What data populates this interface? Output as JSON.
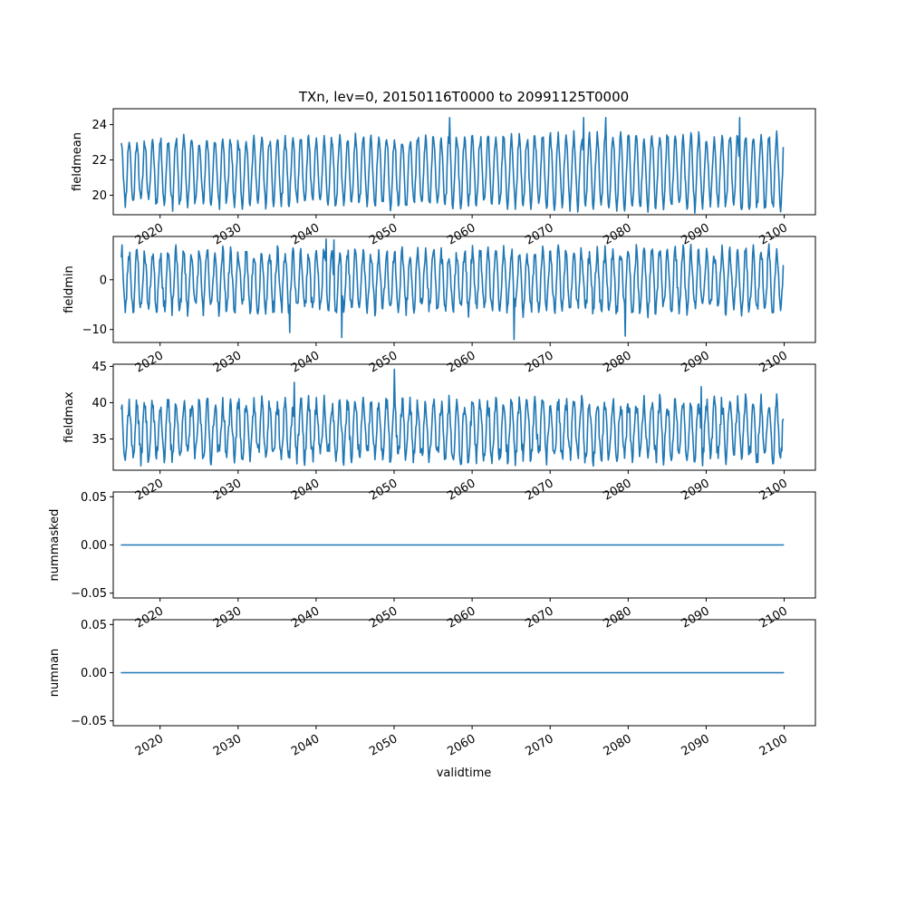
{
  "chart_data": {
    "type": "line",
    "title": "TXn, lev=0, 20150116T0000 to 20991125T0000",
    "xlabel": "validtime",
    "xlim": [
      2014.0,
      2104.0
    ],
    "x_range": [
      2015.04,
      2099.9
    ],
    "xticks": [
      "2020",
      "2030",
      "2040",
      "2050",
      "2060",
      "2070",
      "2080",
      "2090",
      "2100"
    ],
    "series_color": "#1f77b4",
    "panels": [
      {
        "ylabel": "fieldmean",
        "ylim": [
          18.9,
          24.9
        ],
        "yticks": [
          {
            "label": "20",
            "value": 20
          },
          {
            "label": "22",
            "value": 22
          },
          {
            "label": "24",
            "value": 24
          }
        ],
        "series": {
          "kind": "seasonal",
          "mean": 21.35,
          "amp_start": 1.75,
          "amp_end": 2.05,
          "noise": 0.35,
          "seed": 11,
          "extremes": [
            {
              "x": 2057.1,
              "y": 24.4
            },
            {
              "x": 2074.3,
              "y": 24.4
            },
            {
              "x": 2077.1,
              "y": 24.4
            },
            {
              "x": 2094.3,
              "y": 24.4
            },
            {
              "x": 2021.6,
              "y": 19.1
            },
            {
              "x": 2027.6,
              "y": 19.2
            }
          ]
        }
      },
      {
        "ylabel": "fieldmin",
        "ylim": [
          -12.6,
          8.7
        ],
        "yticks": [
          {
            "label": "−10",
            "value": -10
          },
          {
            "label": "0",
            "value": 0
          }
        ],
        "series": {
          "kind": "seasonal",
          "mean": -0.2,
          "amp_start": 5.6,
          "amp_end": 5.9,
          "noise": 1.6,
          "seed": 23,
          "extremes": [
            {
              "x": 2041.3,
              "y": 8.2
            },
            {
              "x": 2042.3,
              "y": 8.0
            },
            {
              "x": 2043.3,
              "y": -11.6
            },
            {
              "x": 2065.4,
              "y": -12.0
            },
            {
              "x": 2079.6,
              "y": -11.3
            },
            {
              "x": 2036.6,
              "y": -10.6
            },
            {
              "x": 2015.1,
              "y": 7.0
            }
          ]
        }
      },
      {
        "ylabel": "fieldmax",
        "ylim": [
          30.7,
          45.3
        ],
        "yticks": [
          {
            "label": "35",
            "value": 35
          },
          {
            "label": "40",
            "value": 40
          },
          {
            "label": "45",
            "value": 45
          }
        ],
        "series": {
          "kind": "seasonal",
          "mean": 36.2,
          "amp_start": 3.6,
          "amp_end": 3.8,
          "noise": 1.3,
          "seed": 37,
          "extremes": [
            {
              "x": 2050.0,
              "y": 44.6
            },
            {
              "x": 2037.2,
              "y": 42.8
            },
            {
              "x": 2017.5,
              "y": 31.3
            },
            {
              "x": 2058.6,
              "y": 31.6
            },
            {
              "x": 2089.4,
              "y": 42.2
            }
          ]
        }
      },
      {
        "ylabel": "nummasked",
        "ylim": [
          -0.055,
          0.055
        ],
        "yticks": [
          {
            "label": "−0.05",
            "value": -0.05
          },
          {
            "label": "0.00",
            "value": 0.0
          },
          {
            "label": "0.05",
            "value": 0.05
          }
        ],
        "series": {
          "kind": "constant",
          "value": 0.0
        }
      },
      {
        "ylabel": "numnan",
        "ylim": [
          -0.055,
          0.055
        ],
        "yticks": [
          {
            "label": "−0.05",
            "value": -0.05
          },
          {
            "label": "0.00",
            "value": 0.0
          },
          {
            "label": "0.05",
            "value": 0.05
          }
        ],
        "series": {
          "kind": "constant",
          "value": 0.0
        }
      }
    ]
  }
}
